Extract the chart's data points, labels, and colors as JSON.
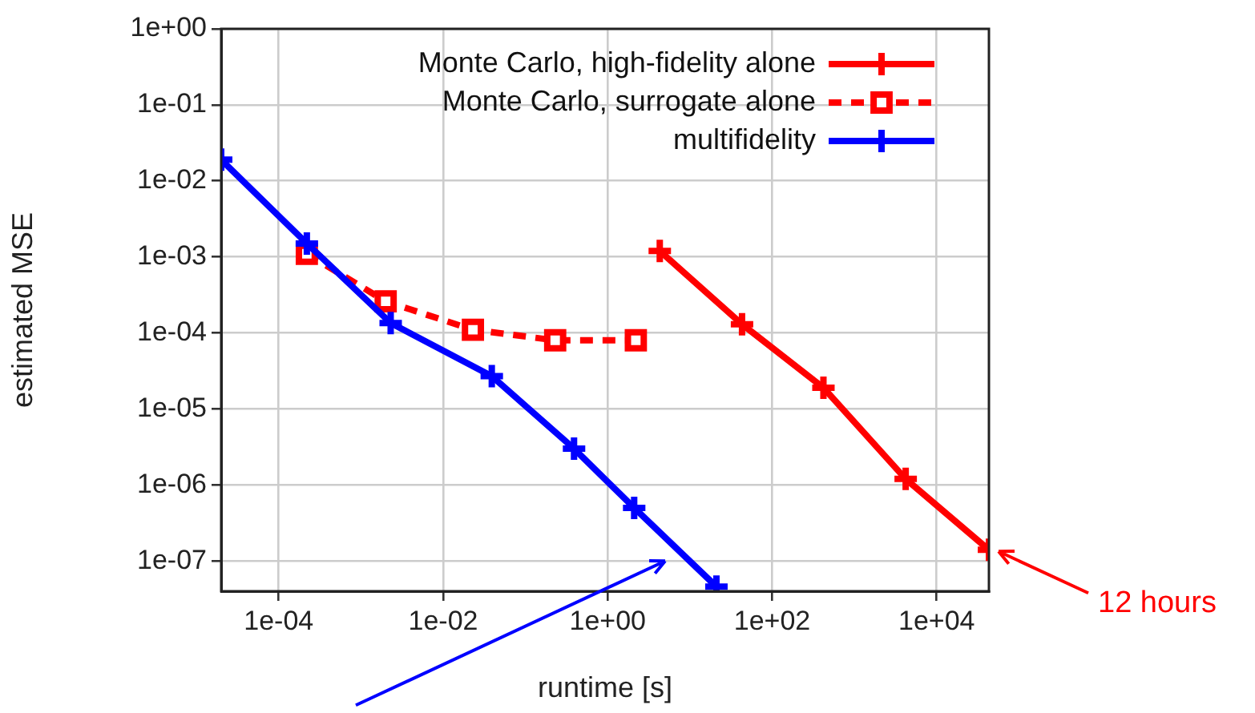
{
  "chart_data": {
    "type": "line",
    "xlabel": "runtime [s]",
    "ylabel": "estimated MSE",
    "log": "xy",
    "grid": true,
    "legend": "top right",
    "xlim": [
      2e-05,
      43200
    ],
    "ylim": [
      4e-08,
      1
    ],
    "xticks": [
      {
        "value": 0.0001,
        "label": "1e-04"
      },
      {
        "value": 0.01,
        "label": "1e-02"
      },
      {
        "value": 1,
        "label": "1e+00"
      },
      {
        "value": 100,
        "label": "1e+02"
      },
      {
        "value": 10000,
        "label": "1e+04"
      }
    ],
    "yticks": [
      {
        "value": 1,
        "label": "1e+00"
      },
      {
        "value": 0.1,
        "label": "1e-01"
      },
      {
        "value": 0.01,
        "label": "1e-02"
      },
      {
        "value": 0.001,
        "label": "1e-03"
      },
      {
        "value": 0.0001,
        "label": "1e-04"
      },
      {
        "value": 1e-05,
        "label": "1e-05"
      },
      {
        "value": 1e-06,
        "label": "1e-06"
      },
      {
        "value": 1e-07,
        "label": "1e-07"
      }
    ],
    "series": [
      {
        "name": "Monte Carlo, high-fidelity alone",
        "color": "#ff0000",
        "marker": "cross",
        "line_style": "solid",
        "x": [
          4.3,
          43,
          420,
          4200,
          43200
        ],
        "values": [
          0.0012,
          0.00013,
          1.9e-05,
          1.2e-06,
          1.4e-07
        ]
      },
      {
        "name": "Monte Carlo, surrogate alone",
        "color": "#ff0000",
        "marker": "square",
        "line_style": "dashed",
        "x": [
          0.00022,
          0.002,
          0.023,
          0.23,
          2.2
        ],
        "values": [
          0.0011,
          0.00026,
          0.00011,
          8e-05,
          8e-05
        ]
      },
      {
        "name": "multifidelity",
        "color": "#0000ff",
        "marker": "cross",
        "line_style": "solid",
        "x": [
          2e-05,
          0.00022,
          0.0023,
          0.039,
          0.39,
          2.1,
          21
        ],
        "values": [
          0.019,
          0.0015,
          0.000135,
          2.7e-05,
          3e-06,
          5e-07,
          4.6e-08
        ]
      }
    ],
    "annotations": [
      "12 hours"
    ]
  }
}
